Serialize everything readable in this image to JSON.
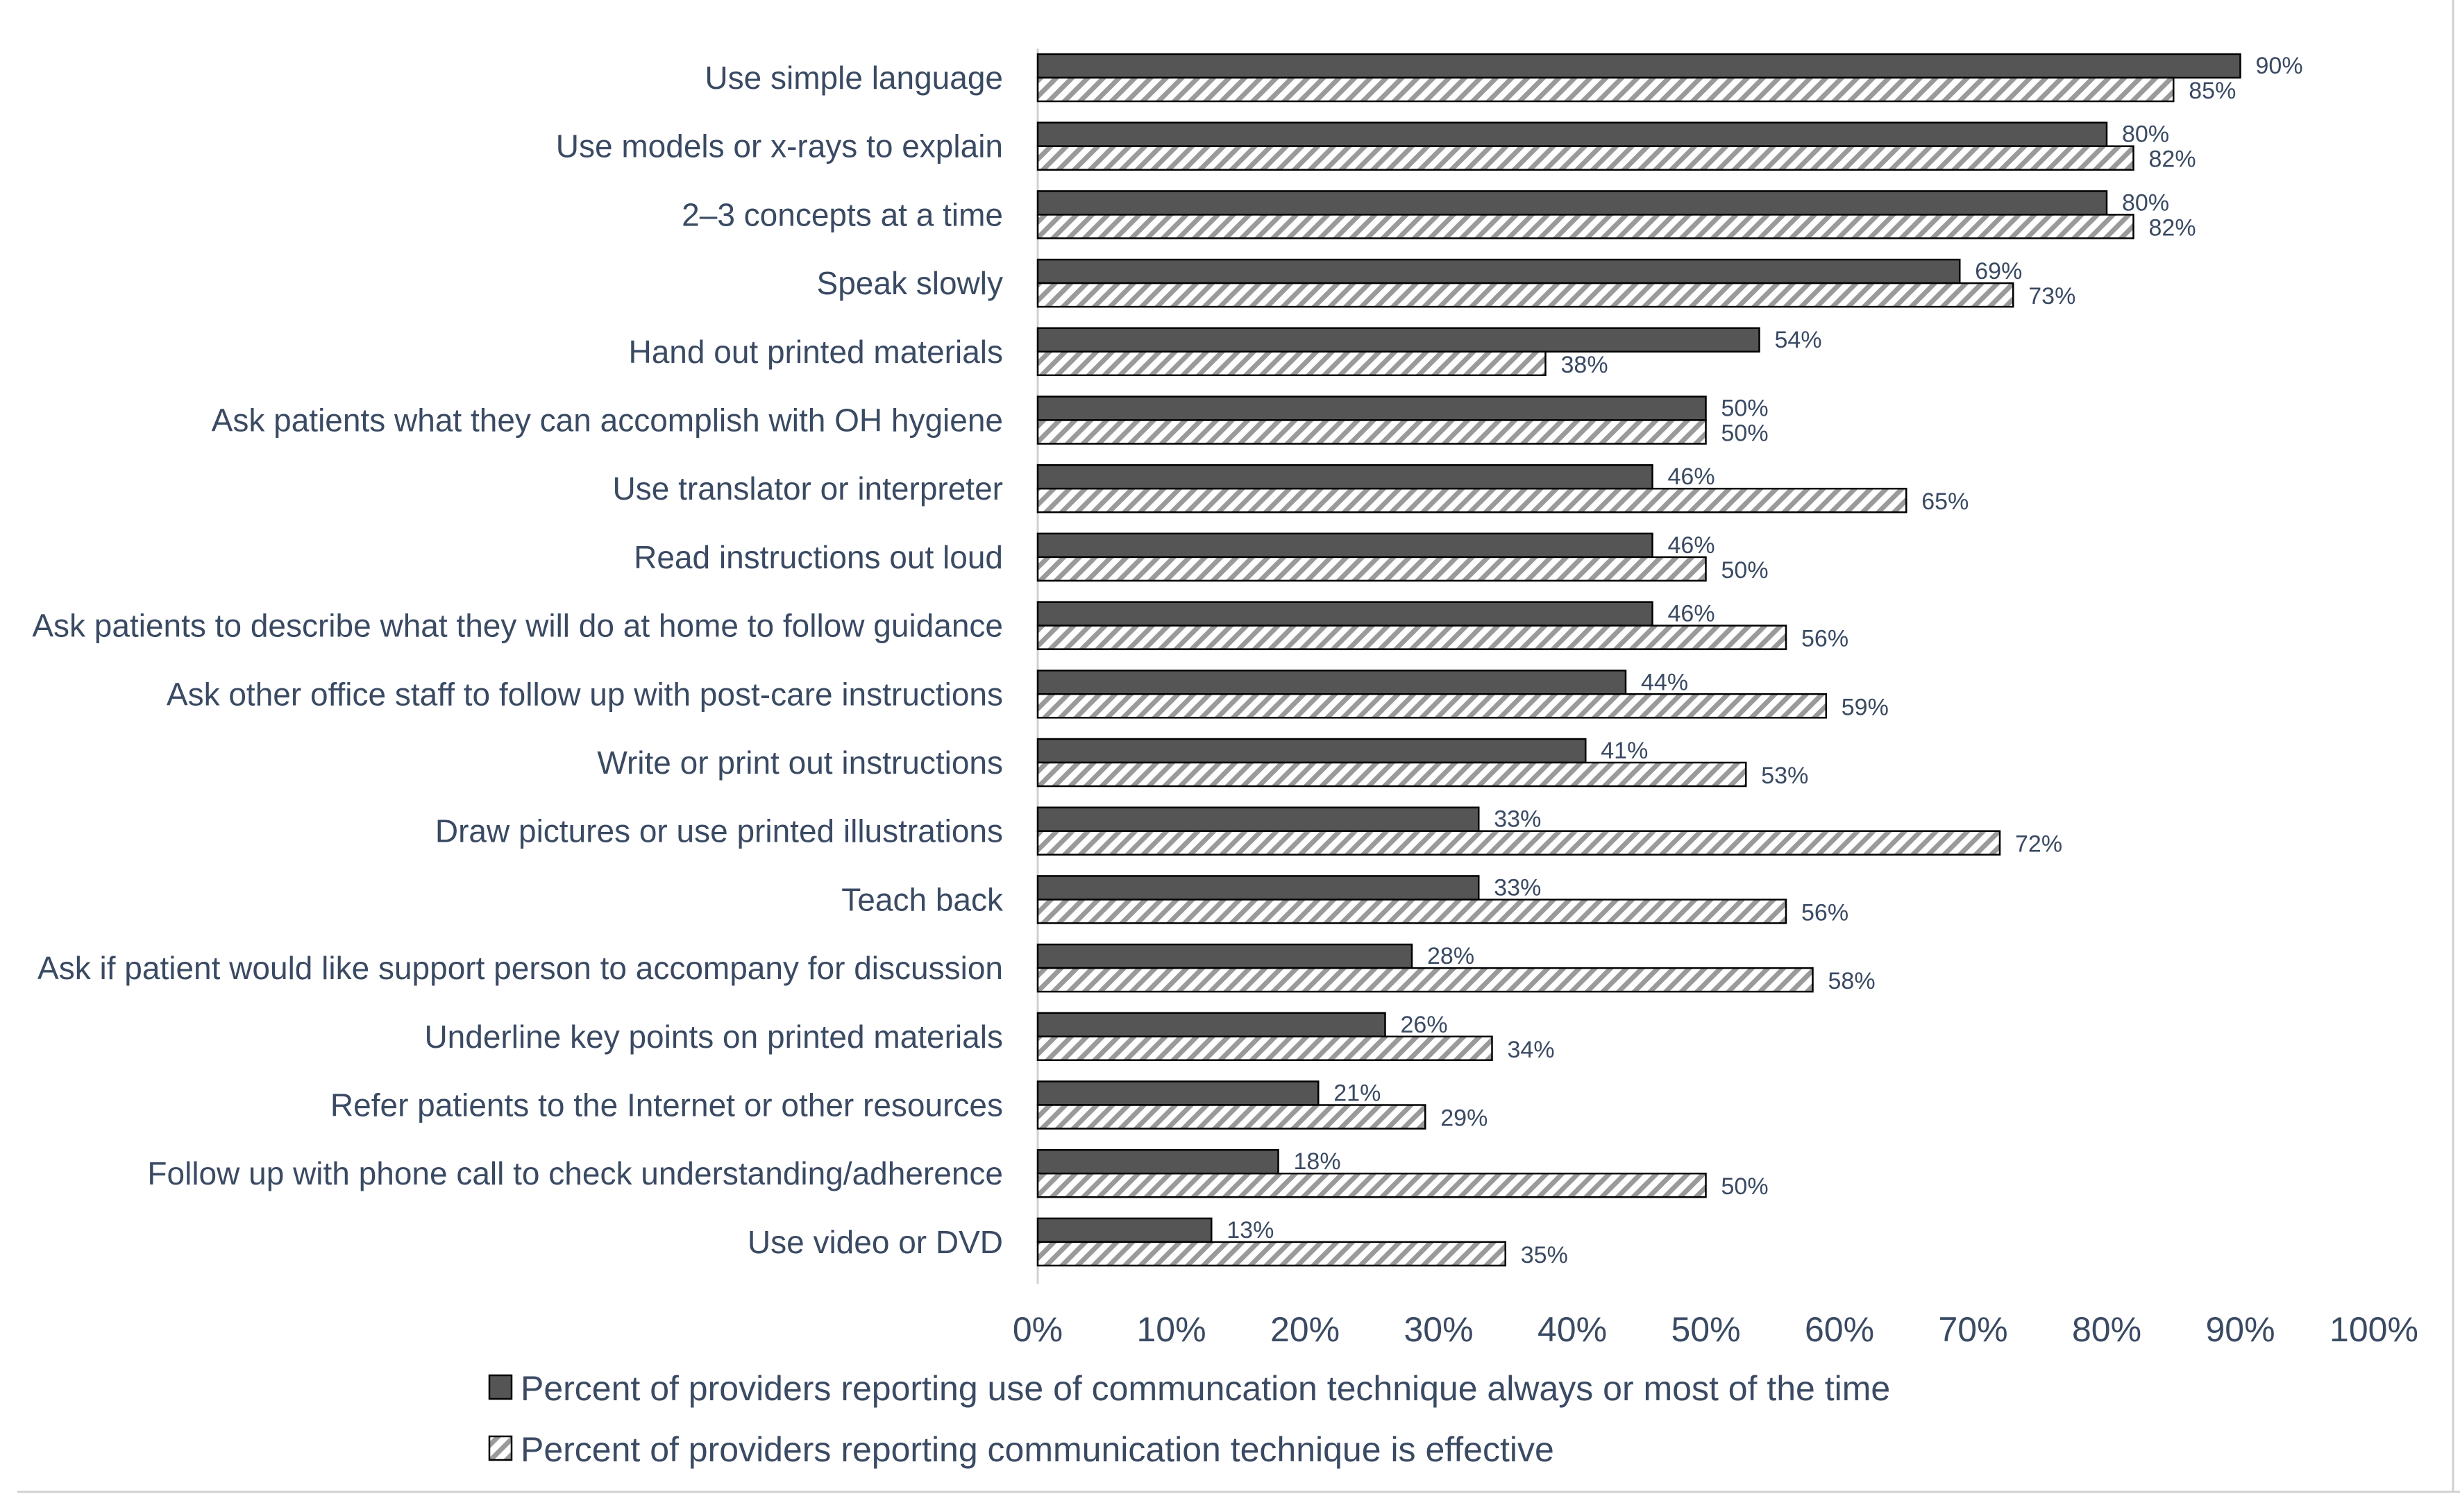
{
  "chart_data": {
    "type": "bar",
    "orientation": "horizontal",
    "title": "",
    "xlabel": "",
    "ylabel": "",
    "xlim": [
      0,
      100
    ],
    "x_ticks": [
      "0%",
      "10%",
      "20%",
      "30%",
      "40%",
      "50%",
      "60%",
      "70%",
      "80%",
      "90%",
      "100%"
    ],
    "grid": false,
    "legend_position": "bottom",
    "categories": [
      "Use simple language",
      "Use models or x-rays to explain",
      "2–3 concepts at a time",
      "Speak slowly",
      "Hand out printed materials",
      "Ask patients what they can accomplish with OH hygiene",
      "Use translator or interpreter",
      "Read instructions out loud",
      "Ask patients to describe what they will do at home to follow guidance",
      "Ask other office staff to follow up with post-care instructions",
      "Write or print out instructions",
      "Draw pictures or use printed illustrations",
      "Teach back",
      "Ask if patient would like support person to accompany for discussion",
      "Underline key points on printed materials",
      "Refer patients to the Internet or other resources",
      "Follow up with phone call to check understanding/adherence",
      "Use video or DVD"
    ],
    "series": [
      {
        "name": "Percent of providers reporting use of communcation technique always or most of the time",
        "style": "solid",
        "color": "#555555",
        "values": [
          90,
          80,
          80,
          69,
          54,
          50,
          46,
          46,
          46,
          44,
          41,
          33,
          33,
          28,
          26,
          21,
          18,
          13
        ],
        "labels": [
          "90%",
          "80%",
          "80%",
          "69%",
          "54%",
          "50%",
          "46%",
          "46%",
          "46%",
          "44%",
          "41%",
          "33%",
          "33%",
          "28%",
          "26%",
          "21%",
          "18%",
          "13%"
        ]
      },
      {
        "name": "Percent of providers reporting communication technique is effective",
        "style": "hatched",
        "color": "#9a9a9a",
        "values": [
          85,
          82,
          82,
          73,
          38,
          50,
          65,
          50,
          56,
          59,
          53,
          72,
          56,
          58,
          34,
          29,
          50,
          35
        ],
        "labels": [
          "85%",
          "82%",
          "82%",
          "73%",
          "38%",
          "50%",
          "65%",
          "50%",
          "56%",
          "59%",
          "53%",
          "72%",
          "56%",
          "58%",
          "34%",
          "29%",
          "50%",
          "35%"
        ]
      }
    ]
  }
}
